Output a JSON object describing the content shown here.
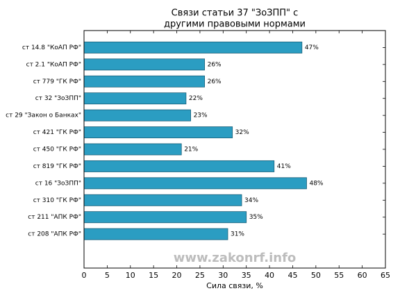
{
  "chart_data": {
    "type": "barh",
    "title": [
      "Связи статьи 37 \"ЗоЗПП\" с",
      "другими правовыми нормами"
    ],
    "xlabel": "Сила связи, %",
    "annotation": "www.zakonrf.info",
    "categories": [
      "ст 14.8 \"КоАП РФ\"",
      "ст 2.1 \"КоАП РФ\"",
      "ст 779 \"ГК РФ\"",
      "ст 32 \"ЗоЗПП\"",
      "ст 29 \"Закон о Банках\"",
      "ст 421 \"ГК РФ\"",
      "ст 450 \"ГК РФ\"",
      "ст 819 \"ГК РФ\"",
      "ст 16 \"ЗоЗПП\"",
      "ст 310 \"ГК РФ\"",
      "ст 211 \"АПК РФ\"",
      "ст 208 \"АПК РФ\""
    ],
    "values": [
      47,
      26,
      26,
      22,
      23,
      32,
      21,
      41,
      48,
      34,
      35,
      31
    ],
    "value_labels": [
      "47%",
      "26%",
      "26%",
      "22%",
      "23%",
      "32%",
      "21%",
      "41%",
      "48%",
      "34%",
      "35%",
      "31%"
    ],
    "color": "#2b9dc2",
    "xlim": [
      0,
      65
    ],
    "xticks": [
      0,
      5,
      10,
      15,
      20,
      25,
      30,
      35,
      40,
      45,
      50,
      55,
      60,
      65
    ]
  }
}
